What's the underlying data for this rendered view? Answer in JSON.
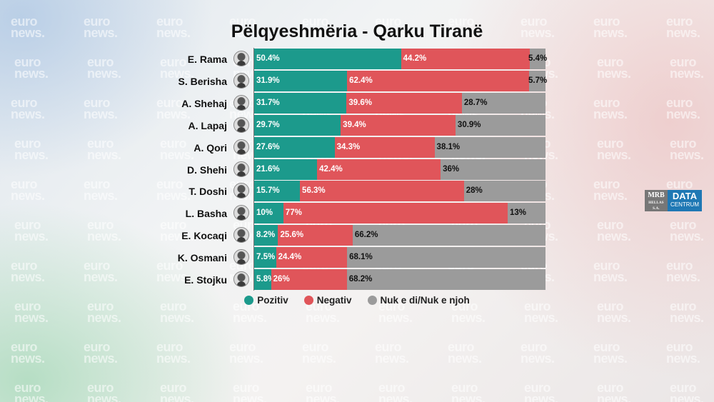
{
  "watermark_text": [
    "euro",
    "news."
  ],
  "title": "Pëlqyeshmëria - Qarku Tiranë",
  "colors": {
    "positive": "#1c9a8c",
    "negative": "#e0555a",
    "unknown": "#9b9b9b"
  },
  "chart_data": {
    "type": "bar",
    "orientation": "horizontal",
    "stacked": true,
    "title": "Pëlqyeshmëria - Qarku Tiranë",
    "categories": [
      "E. Rama",
      "S. Berisha",
      "A. Shehaj",
      "A. Lapaj",
      "A. Qori",
      "D. Shehi",
      "T. Doshi",
      "L. Basha",
      "E. Kocaqi",
      "K. Osmani",
      "E. Stojku"
    ],
    "series": [
      {
        "name": "Pozitiv",
        "values": [
          50.4,
          31.9,
          31.7,
          29.7,
          27.6,
          21.6,
          15.7,
          10,
          8.2,
          7.5,
          5.8
        ],
        "labels": [
          "50.4%",
          "31.9%",
          "31.7%",
          "29.7%",
          "27.6%",
          "21.6%",
          "15.7%",
          "10%",
          "8.2%",
          "7.5%",
          "5.8%"
        ]
      },
      {
        "name": "Negativ",
        "values": [
          44.2,
          62.4,
          39.6,
          39.4,
          34.3,
          42.4,
          56.3,
          77,
          25.6,
          24.4,
          26
        ],
        "labels": [
          "44.2%",
          "62.4%",
          "39.6%",
          "39.4%",
          "34.3%",
          "42.4%",
          "56.3%",
          "77%",
          "25.6%",
          "24.4%",
          "26%"
        ]
      },
      {
        "name": "Nuk e di/Nuk e njoh",
        "values": [
          5.4,
          5.7,
          28.7,
          30.9,
          38.1,
          36,
          28,
          13,
          66.2,
          68.1,
          68.2
        ],
        "labels": [
          "5.4%",
          "5.7%",
          "28.7%",
          "30.9%",
          "38.1%",
          "36%",
          "28%",
          "13%",
          "66.2%",
          "68.1%",
          "68.2%"
        ]
      }
    ],
    "xlim": [
      0,
      100
    ],
    "grid": false,
    "legend_position": "bottom"
  },
  "legend": {
    "positive": "Pozitiv",
    "negative": "Negativ",
    "unknown": "Nuk e di/Nuk e njoh"
  },
  "logo": {
    "mrb": "MRB",
    "mrb_sub": "HELLAS S.A.",
    "data": "DATA",
    "data_sub": "CENTRUM"
  }
}
